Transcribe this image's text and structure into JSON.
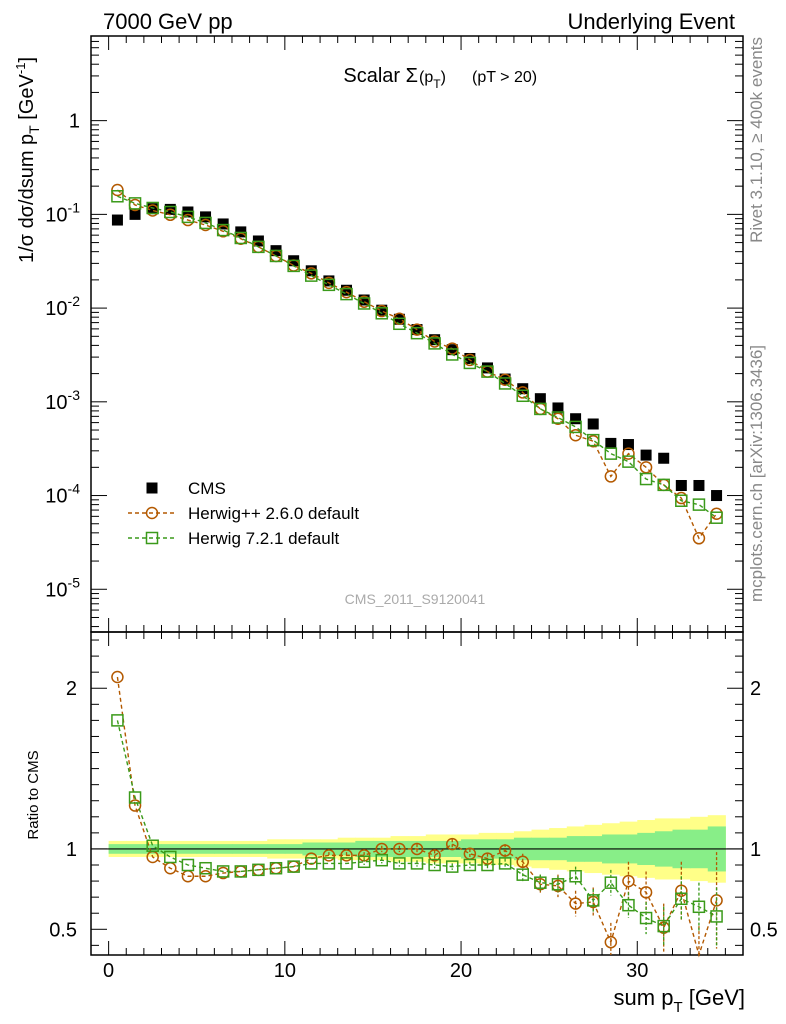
{
  "header": {
    "left": "7000 GeV pp",
    "right": "Underlying Event"
  },
  "side": {
    "top": "Rivet 3.1.10, ≥ 400k events",
    "bottom": "mcplots.cern.ch [arXiv:1306.3436]"
  },
  "watermark": "CMS_2011_S9120041",
  "chart_data": [
    {
      "type": "scatter",
      "title_main": "Scalar Σ",
      "title_sub": "(p",
      "title_subT": "T",
      "title_close": ")",
      "title_extra": "(pT > 20)",
      "ylabel_a": "1/σ dσ/dsum p",
      "ylabel_sub": "T",
      "ylabel_b": " [GeV",
      "ylabel_sup": "-1",
      "ylabel_c": "]",
      "yscale": "log",
      "xlim": [
        -1,
        36
      ],
      "ylim": [
        3.5e-06,
        8
      ],
      "yticks": [
        {
          "v": 1,
          "base": "1",
          "exp": ""
        },
        {
          "v": 0.1,
          "base": "10",
          "exp": "-1"
        },
        {
          "v": 0.01,
          "base": "10",
          "exp": "-2"
        },
        {
          "v": 0.001,
          "base": "10",
          "exp": "-3"
        },
        {
          "v": 0.0001,
          "base": "10",
          "exp": "-4"
        },
        {
          "v": 1e-05,
          "base": "10",
          "exp": "-5"
        }
      ],
      "x": [
        0.5,
        1.5,
        2.5,
        3.5,
        4.5,
        5.5,
        6.5,
        7.5,
        8.5,
        9.5,
        10.5,
        11.5,
        12.5,
        13.5,
        14.5,
        15.5,
        16.5,
        17.5,
        18.5,
        19.5,
        20.5,
        21.5,
        22.5,
        23.5,
        24.5,
        25.5,
        26.5,
        27.5,
        28.5,
        29.5,
        30.5,
        31.5,
        32.5,
        33.5,
        34.5
      ],
      "legend": [
        {
          "label": "CMS",
          "marker": "square-filled",
          "color": "#000000"
        },
        {
          "label": "Herwig++ 2.6.0 default",
          "marker": "circle-open",
          "color": "#b35900"
        },
        {
          "label": "Herwig 7.2.1 default",
          "marker": "square-open",
          "color": "#3a9a1a"
        }
      ],
      "series": [
        {
          "name": "CMS",
          "color": "#000000",
          "values": [
            0.087,
            0.1,
            0.115,
            0.113,
            0.106,
            0.094,
            0.079,
            0.065,
            0.052,
            0.041,
            0.032,
            0.025,
            0.0195,
            0.0155,
            0.0122,
            0.0095,
            0.0076,
            0.0059,
            0.0046,
            0.0036,
            0.0029,
            0.0023,
            0.00175,
            0.00138,
            0.00108,
            0.00086,
            0.00066,
            0.00058,
            0.00036,
            0.00035,
            0.00027,
            0.00025,
            0.000128,
            0.000128,
            0.0001
          ]
        },
        {
          "name": "Herwig++ 2.6.0 default",
          "color": "#b35900",
          "values": [
            0.182,
            0.126,
            0.11,
            0.099,
            0.087,
            0.077,
            0.066,
            0.055,
            0.045,
            0.036,
            0.0285,
            0.0235,
            0.0186,
            0.0148,
            0.0117,
            0.0093,
            0.0077,
            0.0059,
            0.0044,
            0.0037,
            0.0028,
            0.0021,
            0.00172,
            0.00126,
            0.00084,
            0.00066,
            0.00044,
            0.00038,
            0.00016,
            0.00028,
            0.0002,
            0.00013,
            9.4e-05,
            3.5e-05,
            6.4e-05
          ]
        },
        {
          "name": "Herwig 7.2.1 default",
          "color": "#3a9a1a",
          "values": [
            0.156,
            0.131,
            0.117,
            0.106,
            0.094,
            0.081,
            0.068,
            0.056,
            0.045,
            0.036,
            0.0282,
            0.0222,
            0.0177,
            0.0141,
            0.0112,
            0.0088,
            0.0068,
            0.0054,
            0.0042,
            0.0032,
            0.0026,
            0.0021,
            0.00157,
            0.00116,
            0.00084,
            0.00068,
            0.00054,
            0.00039,
            0.00028,
            0.00023,
            0.00015,
            0.00013,
            8.8e-05,
            8e-05,
            5.8e-05
          ]
        }
      ]
    },
    {
      "type": "scatter",
      "ylabel": "Ratio to CMS",
      "xlabel_a": "sum p",
      "xlabel_sub": "T",
      "xlabel_b": " [GeV]",
      "xlim": [
        -1,
        36
      ],
      "ylim": [
        0.34,
        2.35
      ],
      "xticks": [
        0,
        10,
        20,
        30
      ],
      "yticks": [
        0.5,
        1,
        2
      ],
      "reference": 1,
      "band_inner_halfwidth": [
        0.03,
        0.03,
        0.03,
        0.03,
        0.03,
        0.03,
        0.03,
        0.03,
        0.03,
        0.03,
        0.03,
        0.04,
        0.04,
        0.04,
        0.05,
        0.05,
        0.05,
        0.05,
        0.05,
        0.05,
        0.06,
        0.06,
        0.06,
        0.07,
        0.07,
        0.07,
        0.08,
        0.08,
        0.09,
        0.09,
        0.1,
        0.11,
        0.12,
        0.12,
        0.14
      ],
      "band_outer_halfwidth": [
        0.05,
        0.05,
        0.05,
        0.05,
        0.05,
        0.05,
        0.05,
        0.05,
        0.05,
        0.06,
        0.06,
        0.06,
        0.06,
        0.07,
        0.07,
        0.07,
        0.08,
        0.08,
        0.09,
        0.09,
        0.09,
        0.1,
        0.1,
        0.11,
        0.12,
        0.13,
        0.14,
        0.15,
        0.16,
        0.17,
        0.18,
        0.19,
        0.19,
        0.2,
        0.21
      ],
      "series": [
        {
          "name": "Herwig++ 2.6.0 default",
          "color": "#b35900",
          "values": [
            2.07,
            1.27,
            0.95,
            0.88,
            0.83,
            0.83,
            0.85,
            0.86,
            0.87,
            0.88,
            0.89,
            0.94,
            0.96,
            0.96,
            0.96,
            1.0,
            1.0,
            1.0,
            0.96,
            1.03,
            0.97,
            0.94,
            0.99,
            0.92,
            0.78,
            0.77,
            0.66,
            0.67,
            0.42,
            0.8,
            0.73,
            0.51,
            0.74,
            0.27,
            0.68
          ],
          "errors": [
            0.01,
            0.01,
            0.01,
            0.01,
            0.01,
            0.01,
            0.01,
            0.01,
            0.01,
            0.01,
            0.01,
            0.01,
            0.02,
            0.02,
            0.02,
            0.02,
            0.02,
            0.03,
            0.03,
            0.03,
            0.03,
            0.03,
            0.04,
            0.05,
            0.06,
            0.07,
            0.08,
            0.09,
            0.12,
            0.12,
            0.13,
            0.15,
            0.18,
            0.25,
            0.3
          ]
        },
        {
          "name": "Herwig 7.2.1 default",
          "color": "#3a9a1a",
          "values": [
            1.8,
            1.32,
            1.02,
            0.95,
            0.9,
            0.88,
            0.86,
            0.86,
            0.87,
            0.88,
            0.89,
            0.91,
            0.91,
            0.91,
            0.92,
            0.93,
            0.91,
            0.91,
            0.9,
            0.89,
            0.9,
            0.9,
            0.91,
            0.84,
            0.79,
            0.78,
            0.83,
            0.68,
            0.79,
            0.65,
            0.57,
            0.52,
            0.69,
            0.64,
            0.58
          ],
          "errors": [
            0.01,
            0.01,
            0.01,
            0.01,
            0.01,
            0.01,
            0.01,
            0.01,
            0.01,
            0.01,
            0.01,
            0.01,
            0.01,
            0.01,
            0.02,
            0.02,
            0.02,
            0.02,
            0.02,
            0.02,
            0.02,
            0.03,
            0.03,
            0.04,
            0.05,
            0.05,
            0.06,
            0.07,
            0.08,
            0.08,
            0.1,
            0.12,
            0.14,
            0.15,
            0.18
          ]
        }
      ]
    }
  ]
}
